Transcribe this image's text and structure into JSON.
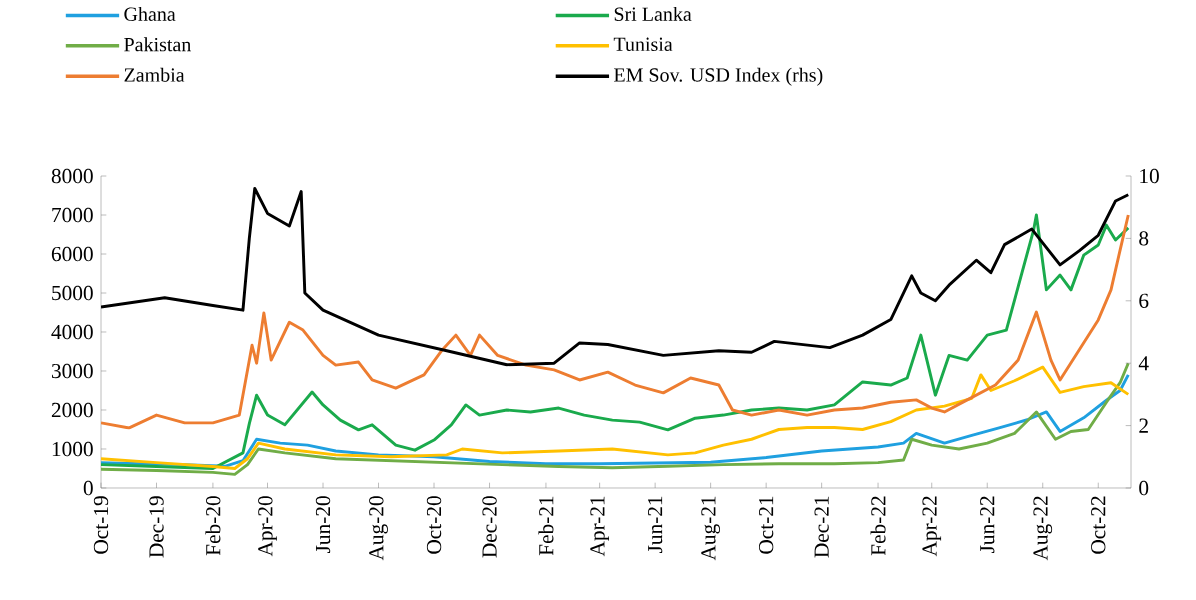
{
  "chart_data": {
    "type": "line",
    "legend": "top",
    "xlim": [
      "2019-10-01",
      "2022-11-06"
    ],
    "xticks": [
      {
        "value": "2019-10-01",
        "label": "Oct-19"
      },
      {
        "value": "2019-12-01",
        "label": "Dec-19"
      },
      {
        "value": "2020-02-01",
        "label": "Feb-20"
      },
      {
        "value": "2020-04-01",
        "label": "Apr-20"
      },
      {
        "value": "2020-06-01",
        "label": "Jun-20"
      },
      {
        "value": "2020-08-01",
        "label": "Aug-20"
      },
      {
        "value": "2020-10-01",
        "label": "Oct-20"
      },
      {
        "value": "2020-12-01",
        "label": "Dec-20"
      },
      {
        "value": "2021-02-01",
        "label": "Feb-21"
      },
      {
        "value": "2021-04-01",
        "label": "Apr-21"
      },
      {
        "value": "2021-06-01",
        "label": "Jun-21"
      },
      {
        "value": "2021-08-01",
        "label": "Aug-21"
      },
      {
        "value": "2021-10-01",
        "label": "Oct-21"
      },
      {
        "value": "2021-12-01",
        "label": "Dec-21"
      },
      {
        "value": "2022-02-01",
        "label": "Feb-22"
      },
      {
        "value": "2022-04-01",
        "label": "Apr-22"
      },
      {
        "value": "2022-06-01",
        "label": "Jun-22"
      },
      {
        "value": "2022-08-01",
        "label": "Aug-22"
      },
      {
        "value": "2022-10-01",
        "label": "Oct-22"
      }
    ],
    "ylim": [
      0,
      8000
    ],
    "yticks": [
      0,
      1000,
      2000,
      3000,
      4000,
      5000,
      6000,
      7000,
      8000
    ],
    "y2lim": [
      0,
      10
    ],
    "y2ticks": [
      0,
      2,
      4,
      6,
      8,
      10
    ],
    "series": [
      {
        "name": "Ghana",
        "color": "#1fa0e0",
        "x": [
          "2019-10-01",
          "2019-11-15",
          "2020-01-01",
          "2020-02-15",
          "2020-03-05",
          "2020-03-20",
          "2020-04-15",
          "2020-05-15",
          "2020-06-15",
          "2020-08-01",
          "2020-10-01",
          "2020-12-01",
          "2021-02-01",
          "2021-04-01",
          "2021-06-01",
          "2021-08-01",
          "2021-10-01",
          "2021-12-01",
          "2022-02-01",
          "2022-03-01",
          "2022-03-15",
          "2022-04-15",
          "2022-05-15",
          "2022-06-15",
          "2022-07-15",
          "2022-08-05",
          "2022-08-20",
          "2022-09-15",
          "2022-10-10",
          "2022-10-25",
          "2022-11-03"
        ],
        "values": [
          650,
          620,
          600,
          560,
          700,
          1250,
          1150,
          1100,
          950,
          850,
          800,
          680,
          620,
          620,
          640,
          660,
          780,
          950,
          1050,
          1150,
          1400,
          1150,
          1350,
          1550,
          1750,
          1950,
          1450,
          1800,
          2250,
          2500,
          2900
        ]
      },
      {
        "name": "Sri Lanka",
        "color": "#1aaa4c",
        "x": [
          "2019-10-01",
          "2019-12-01",
          "2020-02-01",
          "2020-03-05",
          "2020-03-12",
          "2020-03-20",
          "2020-04-01",
          "2020-04-20",
          "2020-05-20",
          "2020-06-01",
          "2020-06-20",
          "2020-07-10",
          "2020-07-25",
          "2020-08-20",
          "2020-09-10",
          "2020-10-01",
          "2020-10-20",
          "2020-11-05",
          "2020-11-20",
          "2020-12-20",
          "2021-01-15",
          "2021-02-15",
          "2021-03-15",
          "2021-04-15",
          "2021-05-15",
          "2021-06-15",
          "2021-07-15",
          "2021-08-15",
          "2021-09-15",
          "2021-10-15",
          "2021-11-15",
          "2021-12-15",
          "2022-01-15",
          "2022-02-15",
          "2022-03-05",
          "2022-03-20",
          "2022-04-05",
          "2022-04-20",
          "2022-05-10",
          "2022-06-01",
          "2022-06-22",
          "2022-07-01",
          "2022-07-22",
          "2022-07-25",
          "2022-08-05",
          "2022-08-20",
          "2022-09-01",
          "2022-09-15",
          "2022-10-01",
          "2022-10-10",
          "2022-10-20",
          "2022-11-03"
        ],
        "values": [
          600,
          550,
          500,
          900,
          1650,
          2380,
          1870,
          1620,
          2460,
          2130,
          1740,
          1490,
          1620,
          1100,
          970,
          1230,
          1620,
          2130,
          1870,
          2000,
          1950,
          2050,
          1870,
          1740,
          1690,
          1490,
          1790,
          1870,
          2000,
          2050,
          2000,
          2130,
          2720,
          2640,
          2820,
          3920,
          2380,
          3400,
          3280,
          3920,
          4050,
          4820,
          6620,
          7000,
          5080,
          5460,
          5080,
          5970,
          6230,
          6740,
          6360,
          6670
        ]
      },
      {
        "name": "Pakistan",
        "color": "#70ad47",
        "x": [
          "2019-10-01",
          "2019-12-01",
          "2020-02-01",
          "2020-02-25",
          "2020-03-10",
          "2020-03-22",
          "2020-04-20",
          "2020-06-15",
          "2020-08-15",
          "2020-10-15",
          "2020-12-15",
          "2021-02-15",
          "2021-04-15",
          "2021-06-15",
          "2021-08-15",
          "2021-10-15",
          "2021-12-15",
          "2022-02-01",
          "2022-03-01",
          "2022-03-10",
          "2022-04-01",
          "2022-05-01",
          "2022-06-01",
          "2022-07-01",
          "2022-07-25",
          "2022-08-15",
          "2022-09-01",
          "2022-09-20",
          "2022-10-10",
          "2022-10-25",
          "2022-11-03"
        ],
        "values": [
          480,
          450,
          400,
          350,
          600,
          1000,
          900,
          750,
          700,
          650,
          600,
          550,
          520,
          560,
          600,
          620,
          620,
          650,
          720,
          1250,
          1100,
          1000,
          1150,
          1400,
          1950,
          1250,
          1450,
          1500,
          2200,
          2700,
          3200
        ]
      },
      {
        "name": "Tunisia",
        "color": "#ffc000",
        "x": [
          "2019-10-01",
          "2019-12-01",
          "2020-02-01",
          "2020-02-25",
          "2020-03-10",
          "2020-03-22",
          "2020-04-20",
          "2020-06-15",
          "2020-08-15",
          "2020-10-15",
          "2020-11-01",
          "2020-12-15",
          "2021-02-15",
          "2021-04-15",
          "2021-06-15",
          "2021-07-15",
          "2021-08-15",
          "2021-09-15",
          "2021-10-15",
          "2021-11-15",
          "2021-12-15",
          "2022-01-15",
          "2022-02-15",
          "2022-03-15",
          "2022-04-15",
          "2022-05-15",
          "2022-05-25",
          "2022-06-05",
          "2022-07-01",
          "2022-08-01",
          "2022-08-20",
          "2022-09-15",
          "2022-10-15",
          "2022-11-03"
        ],
        "values": [
          750,
          650,
          550,
          500,
          750,
          1150,
          1000,
          850,
          800,
          850,
          1000,
          900,
          950,
          1000,
          850,
          900,
          1100,
          1250,
          1500,
          1550,
          1550,
          1500,
          1700,
          2000,
          2100,
          2300,
          2900,
          2500,
          2750,
          3100,
          2450,
          2600,
          2700,
          2400
        ]
      },
      {
        "name": "Zambia",
        "color": "#ed7d31",
        "x": [
          "2019-10-01",
          "2019-11-01",
          "2019-12-01",
          "2020-01-01",
          "2020-02-01",
          "2020-03-01",
          "2020-03-15",
          "2020-03-20",
          "2020-03-28",
          "2020-04-05",
          "2020-04-25",
          "2020-05-10",
          "2020-06-01",
          "2020-06-15",
          "2020-07-10",
          "2020-07-25",
          "2020-08-20",
          "2020-09-20",
          "2020-10-10",
          "2020-10-25",
          "2020-11-10",
          "2020-11-20",
          "2020-12-10",
          "2021-01-10",
          "2021-02-10",
          "2021-03-10",
          "2021-04-10",
          "2021-05-10",
          "2021-06-10",
          "2021-07-10",
          "2021-08-10",
          "2021-08-25",
          "2021-09-15",
          "2021-10-15",
          "2021-11-15",
          "2021-12-15",
          "2022-01-15",
          "2022-02-15",
          "2022-03-15",
          "2022-04-01",
          "2022-04-15",
          "2022-05-10",
          "2022-06-10",
          "2022-07-05",
          "2022-07-25",
          "2022-08-10",
          "2022-08-20",
          "2022-09-10",
          "2022-10-01",
          "2022-10-15",
          "2022-10-25",
          "2022-11-03"
        ],
        "values": [
          1670,
          1540,
          1870,
          1670,
          1670,
          1870,
          3660,
          3200,
          4490,
          3280,
          4250,
          4050,
          3400,
          3150,
          3230,
          2770,
          2560,
          2900,
          3540,
          3920,
          3400,
          3920,
          3400,
          3150,
          3030,
          2770,
          2970,
          2640,
          2440,
          2820,
          2640,
          2000,
          1870,
          2000,
          1870,
          2000,
          2050,
          2200,
          2260,
          2050,
          1950,
          2260,
          2640,
          3280,
          4510,
          3280,
          2770,
          3540,
          4310,
          5080,
          6100,
          7000
        ]
      },
      {
        "name": "EM Sov. USD Index (rhs)",
        "color": "#000000",
        "axis": "y2",
        "x": [
          "2019-10-01",
          "2019-12-10",
          "2020-02-01",
          "2020-03-05",
          "2020-03-12",
          "2020-03-18",
          "2020-04-01",
          "2020-04-25",
          "2020-05-08",
          "2020-05-12",
          "2020-06-01",
          "2020-08-01",
          "2020-10-15",
          "2020-12-20",
          "2021-02-10",
          "2021-03-10",
          "2021-04-10",
          "2021-06-10",
          "2021-08-10",
          "2021-09-15",
          "2021-10-10",
          "2021-12-10",
          "2022-01-15",
          "2022-02-15",
          "2022-03-10",
          "2022-03-20",
          "2022-04-05",
          "2022-04-20",
          "2022-05-20",
          "2022-06-05",
          "2022-06-20",
          "2022-07-20",
          "2022-08-20",
          "2022-09-10",
          "2022-10-01",
          "2022-10-20",
          "2022-11-03"
        ],
        "values": [
          5.8,
          6.1,
          5.85,
          5.7,
          8.0,
          9.6,
          8.8,
          8.4,
          9.5,
          6.25,
          5.7,
          4.9,
          4.4,
          3.95,
          4.0,
          4.65,
          4.6,
          4.25,
          4.4,
          4.35,
          4.7,
          4.5,
          4.9,
          5.4,
          6.8,
          6.25,
          6.0,
          6.5,
          7.3,
          6.9,
          7.8,
          8.3,
          7.15,
          7.6,
          8.1,
          9.2,
          9.4
        ]
      }
    ]
  }
}
